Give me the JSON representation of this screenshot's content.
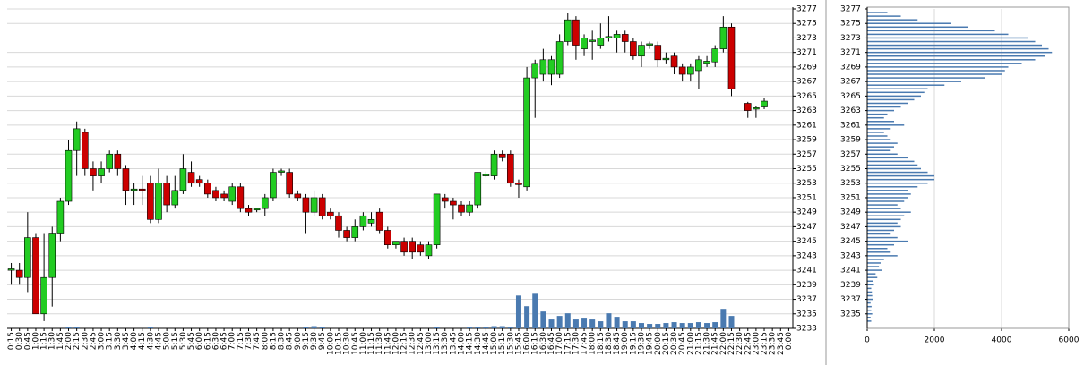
{
  "chart_data": [
    {
      "type": "candlestick",
      "categories": [
        "0:15",
        "0:30",
        "0:45",
        "1:00",
        "1:15",
        "1:30",
        "1:45",
        "2:00",
        "2:15",
        "2:30",
        "2:45",
        "3:00",
        "3:15",
        "3:30",
        "3:45",
        "4:00",
        "4:15",
        "4:30",
        "4:45",
        "5:00",
        "5:15",
        "5:30",
        "5:45",
        "6:00",
        "6:15",
        "6:30",
        "6:45",
        "7:00",
        "7:15",
        "7:30",
        "7:45",
        "8:00",
        "8:15",
        "8:30",
        "8:45",
        "9:00",
        "9:15",
        "9:30",
        "9:45",
        "10:00",
        "10:15",
        "10:30",
        "10:45",
        "11:00",
        "11:15",
        "11:30",
        "11:45",
        "12:00",
        "12:15",
        "12:30",
        "12:45",
        "13:00",
        "13:15",
        "13:30",
        "13:45",
        "14:00",
        "14:15",
        "14:30",
        "14:45",
        "15:00",
        "15:15",
        "15:30",
        "15:45",
        "16:00",
        "16:15",
        "16:30",
        "16:45",
        "17:00",
        "17:15",
        "17:30",
        "17:45",
        "18:00",
        "18:15",
        "18:30",
        "18:45",
        "19:00",
        "19:15",
        "19:30",
        "19:45",
        "20:00",
        "20:15",
        "20:30",
        "20:45",
        "21:00",
        "21:15",
        "21:30",
        "21:45",
        "22:00",
        "22:15",
        "22:30",
        "22:45",
        "23:00",
        "23:15",
        "23:30",
        "23:45",
        "0:00"
      ],
      "open": [
        3241,
        3241,
        3240,
        3245.5,
        3235,
        3240,
        3246,
        3250.5,
        3257.5,
        3260,
        3255,
        3254,
        3255,
        3257,
        3255,
        3252,
        3252.2,
        3253,
        3248,
        3253,
        3250,
        3252,
        3254.5,
        3253.5,
        3253,
        3252,
        3251.5,
        3250.5,
        3252.5,
        3249.5,
        3249.3,
        3249.5,
        3251,
        3254.5,
        3254.5,
        3251.5,
        3251,
        3249,
        3251,
        3249,
        3248.5,
        3246.5,
        3245.5,
        3247,
        3247.5,
        3249,
        3246.5,
        3244.5,
        3245,
        3245,
        3244.5,
        3243,
        3244.5,
        3251,
        3250.5,
        3250,
        3249,
        3250,
        3254,
        3254,
        3257,
        3257,
        3253,
        3252.5,
        3267.5,
        3268,
        3268,
        3268,
        3272.5,
        3275.5,
        3271.5,
        3272.5,
        3272,
        3273,
        3273,
        3273.5,
        3272.5,
        3270.5,
        3272,
        3272,
        3270,
        3270.5,
        3269,
        3268,
        3268.5,
        3269.5,
        3269.7,
        3271.5,
        3274.5,
        null,
        3264,
        3263.2,
        3263.5,
        null,
        null,
        null
      ],
      "high": [
        3242,
        3242,
        3249,
        3246,
        3246,
        3247,
        3251,
        3259,
        3261.5,
        3260.5,
        3256,
        3256,
        3257.5,
        3257.5,
        3255.5,
        3253,
        3254,
        3254,
        3255,
        3254,
        3254,
        3257,
        3256,
        3254,
        3253.5,
        3252.5,
        3252,
        3253,
        3253,
        3250,
        3249.6,
        3251.5,
        3255,
        3255,
        3255,
        3252,
        3251.5,
        3252,
        3251.5,
        3249.5,
        3249,
        3247,
        3248,
        3249,
        3249,
        3249.5,
        3247,
        3245,
        3245.5,
        3245.5,
        3245,
        3245,
        3251.5,
        3251.5,
        3251,
        3250.5,
        3250.5,
        3254.5,
        3254.6,
        3257.5,
        3257.5,
        3257.5,
        3253.5,
        3269,
        3270,
        3271.5,
        3270.5,
        3273.5,
        3276.5,
        3276,
        3273.5,
        3274,
        3275,
        3276,
        3274,
        3274,
        3273,
        3272.5,
        3272.5,
        3272.5,
        3271,
        3271,
        3269.5,
        3269.5,
        3270.5,
        3270.5,
        3272,
        3276,
        3275,
        null,
        3264.2,
        3263.6,
        3264.8,
        null,
        null,
        null
      ],
      "low": [
        3239,
        3239,
        3238,
        3235,
        3234,
        3236,
        3245,
        3250,
        3254,
        3254,
        3252,
        3253,
        3254.5,
        3254,
        3250,
        3250,
        3250,
        3247.5,
        3247.5,
        3249,
        3249.5,
        3251.5,
        3252.5,
        3252.5,
        3251,
        3250.5,
        3250.5,
        3250,
        3249,
        3248.5,
        3249,
        3248.5,
        3250.5,
        3254,
        3251,
        3250.5,
        3246,
        3248.5,
        3248,
        3248,
        3245.5,
        3245,
        3245,
        3246.5,
        3247,
        3246,
        3244,
        3244,
        3243,
        3242.5,
        3243,
        3242.5,
        3244,
        3249.5,
        3248,
        3248.5,
        3248.5,
        3249.5,
        3253.8,
        3253.5,
        3256,
        3252.5,
        3251,
        3252,
        3262,
        3267,
        3266.5,
        3267.5,
        3272,
        3270,
        3270.5,
        3270,
        3271.5,
        3272.5,
        3271,
        3271,
        3270,
        3269,
        3271.5,
        3269,
        3269.5,
        3268,
        3267,
        3267,
        3266,
        3269,
        3269,
        3271,
        3265,
        null,
        3262,
        3262,
        3263.2,
        null,
        null,
        null
      ],
      "close": [
        3241.2,
        3240,
        3245.5,
        3235,
        3240,
        3246,
        3250.5,
        3257.5,
        3260.5,
        3255,
        3254,
        3255,
        3257,
        3255,
        3252,
        3252.2,
        3252,
        3248,
        3253,
        3250,
        3252,
        3255,
        3253,
        3253,
        3251.5,
        3251,
        3251,
        3252.5,
        3249.5,
        3249,
        3249.5,
        3251,
        3254.5,
        3254.7,
        3251.5,
        3251,
        3249,
        3251,
        3248.5,
        3248.5,
        3246.5,
        3245.5,
        3247,
        3248.5,
        3248,
        3246.5,
        3244.5,
        3245,
        3243.5,
        3243.5,
        3243.5,
        3244.5,
        3251.5,
        3250.5,
        3250,
        3249,
        3250,
        3254.5,
        3254.2,
        3257,
        3256.5,
        3253,
        3252.8,
        3267.5,
        3269.5,
        3270,
        3270,
        3272.5,
        3275.5,
        3272,
        3273,
        3272.7,
        3273,
        3273.2,
        3273.5,
        3272.5,
        3270.5,
        3272,
        3272.2,
        3270,
        3270.2,
        3269,
        3268,
        3269,
        3270,
        3269.8,
        3271.5,
        3274.5,
        3266,
        null,
        3263,
        3263.4,
        3264.3,
        null,
        null,
        null
      ],
      "up_color": "#22cc22",
      "down_color": "#cc0000",
      "volume": {
        "values": [
          0,
          0,
          0,
          0,
          0,
          0,
          0,
          20,
          15,
          0,
          0,
          0,
          0,
          0,
          0,
          0,
          0,
          15,
          0,
          0,
          0,
          0,
          0,
          0,
          0,
          0,
          0,
          0,
          0,
          0,
          0,
          0,
          0,
          0,
          0,
          0,
          20,
          25,
          15,
          0,
          0,
          0,
          0,
          0,
          0,
          0,
          0,
          0,
          0,
          0,
          0,
          0,
          20,
          0,
          0,
          0,
          10,
          15,
          10,
          25,
          25,
          15,
          370,
          250,
          390,
          190,
          100,
          140,
          170,
          100,
          110,
          100,
          80,
          170,
          130,
          80,
          80,
          60,
          50,
          50,
          60,
          70,
          60,
          60,
          70,
          60,
          70,
          220,
          140,
          null,
          0,
          0,
          0,
          null,
          null,
          null
        ],
        "color": "#4a7ab0",
        "vlim": [
          0,
          3600
        ]
      },
      "ylim": [
        3233,
        3277
      ],
      "yticks": [
        3233,
        3235,
        3237,
        3239,
        3241,
        3243,
        3245,
        3247,
        3249,
        3251,
        3253,
        3255,
        3257,
        3259,
        3261,
        3263,
        3265,
        3267,
        3269,
        3271,
        3273,
        3275,
        3277
      ],
      "grid": true
    },
    {
      "type": "hbar",
      "y": [
        3234,
        3234.5,
        3235,
        3235.5,
        3236,
        3236.5,
        3237,
        3237.5,
        3238,
        3238.5,
        3239,
        3239.5,
        3240,
        3240.5,
        3241,
        3241.5,
        3242,
        3242.5,
        3243,
        3243.5,
        3244,
        3244.5,
        3245,
        3245.5,
        3246,
        3246.5,
        3247,
        3247.5,
        3248,
        3248.5,
        3249,
        3249.5,
        3250,
        3250.5,
        3251,
        3251.5,
        3252,
        3252.5,
        3253,
        3253.5,
        3254,
        3254.5,
        3255,
        3255.5,
        3256,
        3256.5,
        3257,
        3257.5,
        3258,
        3258.5,
        3259,
        3259.5,
        3260,
        3260.5,
        3261,
        3261.5,
        3262,
        3262.5,
        3263,
        3263.5,
        3264,
        3264.5,
        3265,
        3265.5,
        3266,
        3266.5,
        3267,
        3267.5,
        3268,
        3268.5,
        3269,
        3269.5,
        3270,
        3270.5,
        3271,
        3271.5,
        3272,
        3272.5,
        3273,
        3273.5,
        3274,
        3274.5,
        3275,
        3275.5,
        3276,
        3276.5
      ],
      "values": [
        120,
        100,
        150,
        120,
        130,
        100,
        180,
        150,
        140,
        120,
        200,
        180,
        300,
        250,
        450,
        350,
        400,
        500,
        900,
        700,
        600,
        800,
        1200,
        900,
        700,
        800,
        1000,
        900,
        1000,
        1100,
        1300,
        1000,
        900,
        1100,
        1200,
        1300,
        1200,
        1500,
        1800,
        2000,
        2000,
        1800,
        1600,
        1500,
        1400,
        1200,
        900,
        700,
        800,
        900,
        700,
        600,
        500,
        700,
        1100,
        800,
        500,
        600,
        800,
        1000,
        1200,
        1400,
        1600,
        1700,
        1800,
        2300,
        2800,
        3500,
        4000,
        4100,
        4200,
        4600,
        5000,
        5300,
        5500,
        5400,
        5200,
        5000,
        4800,
        4200,
        3800,
        3000,
        2500,
        1500,
        1000,
        600
      ],
      "color": "#4a7ab0",
      "xlim": [
        0,
        6000
      ],
      "xticks": [
        0,
        2000,
        4000,
        6000
      ],
      "ylim": [
        3233,
        3277
      ],
      "yticks": [
        3235,
        3237,
        3239,
        3241,
        3243,
        3245,
        3247,
        3249,
        3251,
        3253,
        3255,
        3257,
        3259,
        3261,
        3263,
        3265,
        3267,
        3269,
        3271,
        3273,
        3275,
        3277
      ],
      "grid": true
    }
  ]
}
